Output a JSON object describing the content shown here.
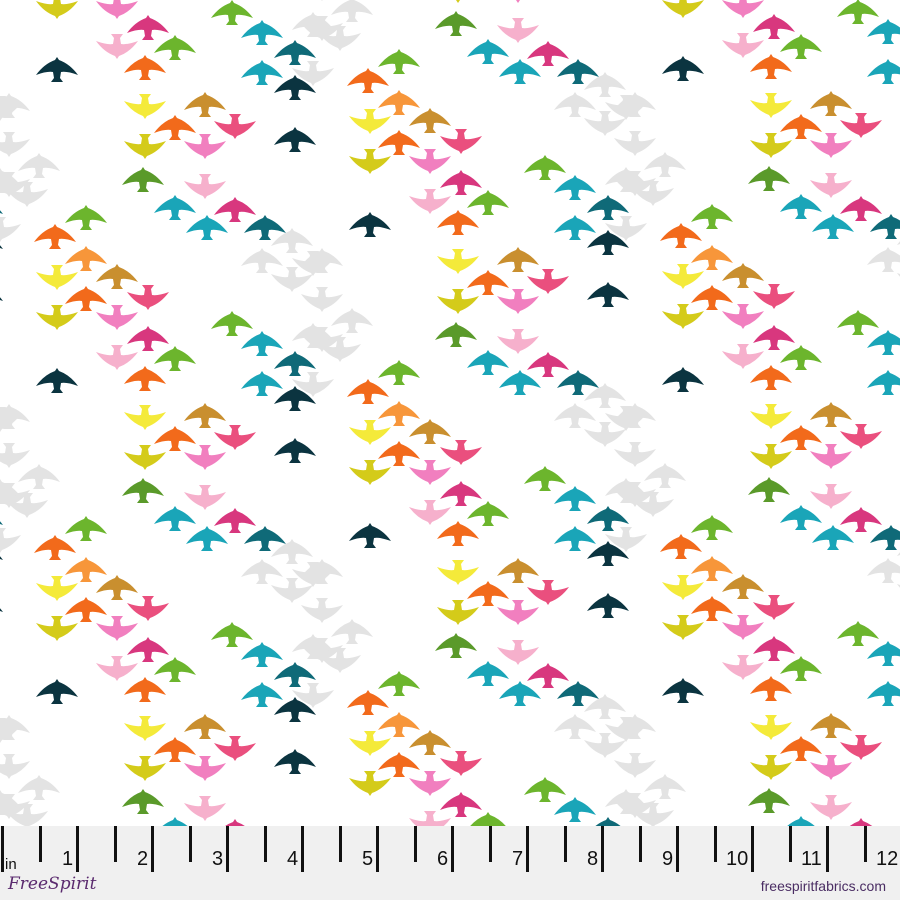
{
  "fabric": {
    "palette": {
      "green": "#6cb52d",
      "olive_green": "#5a9a2a",
      "orange": "#f26a1b",
      "light_orange": "#f7963a",
      "yellow": "#f4ea3a",
      "olive_yellow": "#d4cb1a",
      "brown": "#c98f2f",
      "pink_red": "#ea4f7e",
      "pink": "#f17fbf",
      "light_pink": "#f6b0cc",
      "magenta": "#d8377e",
      "teal": "#1aa5b8",
      "dark_teal": "#0f6a78",
      "navy": "#0b3440",
      "gray": "#e3e3e3"
    }
  },
  "ruler": {
    "unit": "in",
    "numbers": [
      "1",
      "2",
      "3",
      "4",
      "5",
      "6",
      "7",
      "8",
      "9",
      "10",
      "11",
      "12"
    ],
    "logo_text": "FreeSpirit",
    "website": "freespiritfabrics.com"
  }
}
